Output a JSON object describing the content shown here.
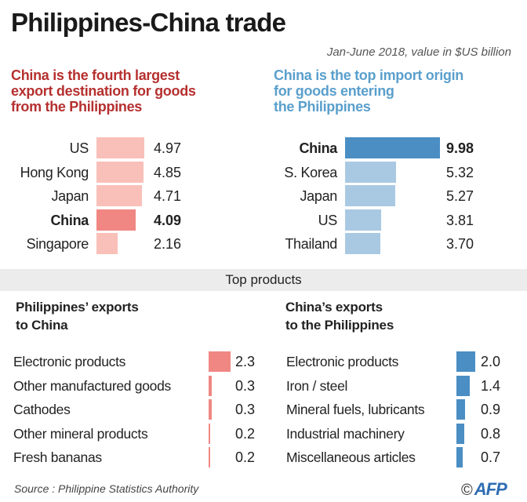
{
  "title": "Philippines-China trade",
  "subtitle": "Jan-June 2018, value in $US billion",
  "colors": {
    "export_light": "#f9c0b9",
    "export_highlight": "#f08783",
    "export_title": "#b5302f",
    "import_light": "#a9c9e3",
    "import_highlight": "#4a8ec4",
    "import_title": "#5a9fcc",
    "product_export": "#f08783",
    "product_import": "#4a8ec4",
    "band": "#ececec"
  },
  "chart_data": [
    {
      "type": "bar",
      "orientation": "horizontal",
      "title": "China is the fourth largest export destination for goods from the Philippines",
      "categories": [
        "US",
        "Hong Kong",
        "Japan",
        "China",
        "Singapore"
      ],
      "values": [
        4.97,
        4.85,
        4.71,
        4.09,
        2.16
      ],
      "labels": [
        "4.97",
        "4.85",
        "4.71",
        "4.09",
        "2.16"
      ],
      "highlight": "China"
    },
    {
      "type": "bar",
      "orientation": "horizontal",
      "title": "China is the top import origin for goods entering the Philippines",
      "categories": [
        "China",
        "S. Korea",
        "Japan",
        "US",
        "Thailand"
      ],
      "values": [
        9.98,
        5.32,
        5.27,
        3.81,
        3.7
      ],
      "labels": [
        "9.98",
        "5.32",
        "5.27",
        "3.81",
        "3.70"
      ],
      "highlight": "China"
    },
    {
      "type": "bar",
      "orientation": "horizontal",
      "title": "Philippines’ exports to China",
      "categories": [
        "Electronic products",
        "Other manufactured goods",
        "Cathodes",
        "Other mineral products",
        "Fresh bananas"
      ],
      "values": [
        2.3,
        0.3,
        0.3,
        0.2,
        0.2
      ],
      "labels": [
        "2.3",
        "0.3",
        "0.3",
        "0.2",
        "0.2"
      ]
    },
    {
      "type": "bar",
      "orientation": "horizontal",
      "title": "China’s exports to the Philippines",
      "categories": [
        "Electronic products",
        "Iron / steel",
        "Mineral fuels, lubricants",
        "Industrial machinery",
        "Miscellaneous articles"
      ],
      "values": [
        2.0,
        1.4,
        0.9,
        0.8,
        0.7
      ],
      "labels": [
        "2.0",
        "1.4",
        "0.9",
        "0.8",
        "0.7"
      ]
    }
  ],
  "section_band": "Top products",
  "sub_left": [
    "Philippines’ exports",
    "to China"
  ],
  "sub_right": [
    "China’s exports",
    "to the Philippines"
  ],
  "exp_head": [
    "China is the fourth largest",
    "export destination for goods",
    "from the Philippines"
  ],
  "imp_head": [
    "China is the top import origin",
    "for goods entering",
    "the Philippines"
  ],
  "source": "Source : Philippine Statistics Authority",
  "logo": {
    "copyright": "©",
    "text": "AFP"
  }
}
